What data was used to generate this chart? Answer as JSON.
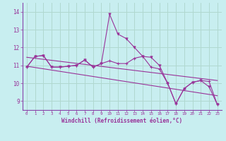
{
  "xlabel": "Windchill (Refroidissement éolien,°C)",
  "background_color": "#c8eef0",
  "grid_color": "#b0d8d0",
  "line_color": "#993399",
  "border_color": "#8844aa",
  "hours": [
    0,
    1,
    2,
    3,
    4,
    5,
    6,
    7,
    8,
    9,
    10,
    11,
    12,
    13,
    14,
    15,
    16,
    17,
    18,
    19,
    20,
    21,
    22,
    23
  ],
  "temp": [
    10.9,
    11.5,
    11.55,
    10.9,
    10.9,
    10.95,
    11.0,
    11.3,
    10.9,
    11.1,
    11.25,
    11.1,
    11.1,
    11.4,
    11.5,
    10.9,
    10.8,
    10.0,
    8.85,
    9.7,
    10.05,
    10.15,
    10.1,
    8.8
  ],
  "windchill": [
    10.9,
    11.5,
    11.55,
    10.9,
    10.9,
    10.95,
    11.0,
    11.3,
    10.9,
    11.1,
    13.85,
    12.75,
    12.5,
    12.0,
    11.5,
    11.45,
    11.0,
    10.0,
    8.85,
    9.7,
    10.05,
    10.15,
    9.8,
    8.8
  ],
  "trend1_x": [
    0,
    23
  ],
  "trend1_y": [
    11.45,
    10.15
  ],
  "trend2_x": [
    0,
    23
  ],
  "trend2_y": [
    10.95,
    9.3
  ],
  "ylim": [
    8.5,
    14.5
  ],
  "yticks": [
    9,
    10,
    11,
    12,
    13,
    14
  ],
  "xticks": [
    0,
    1,
    2,
    3,
    4,
    5,
    6,
    7,
    8,
    9,
    10,
    11,
    12,
    13,
    14,
    15,
    16,
    17,
    18,
    19,
    20,
    21,
    22,
    23
  ]
}
